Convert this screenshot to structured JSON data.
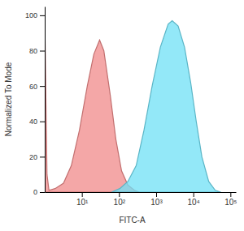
{
  "chart_data": {
    "type": "area",
    "x_label": "FITC-A",
    "y_label": "Normalized To Mode",
    "log": "x",
    "grid": false,
    "xlim": [
      1,
      140000
    ],
    "ylim": [
      0,
      105
    ],
    "xticks": [
      {
        "value": 10,
        "label": "10¹"
      },
      {
        "value": 100,
        "label": "10²"
      },
      {
        "value": 1000,
        "label": "10³"
      },
      {
        "value": 10000,
        "label": "10⁴"
      },
      {
        "value": 100000,
        "label": "10⁵"
      }
    ],
    "yticks": [
      0,
      20,
      40,
      60,
      80,
      100
    ],
    "series": [
      {
        "color": "#f08a8a",
        "x": [
          1,
          1.15,
          1.3,
          1.9,
          3.2,
          5.2,
          8.6,
          14,
          21,
          30,
          39,
          58,
          82,
          117,
          173,
          260,
          350
        ],
        "values": [
          100,
          10,
          1,
          2,
          5,
          15,
          35,
          60,
          78,
          86,
          80,
          55,
          30,
          12,
          4,
          1,
          0
        ]
      },
      {
        "color": "#6fe0f5",
        "x": [
          63,
          105,
          173,
          290,
          470,
          780,
          1300,
          2100,
          2700,
          3900,
          5800,
          8500,
          12000,
          17000,
          26000,
          39000,
          55000
        ],
        "values": [
          0,
          2,
          6,
          15,
          35,
          60,
          82,
          95,
          97,
          94,
          82,
          62,
          40,
          20,
          6,
          1,
          0
        ]
      }
    ]
  }
}
